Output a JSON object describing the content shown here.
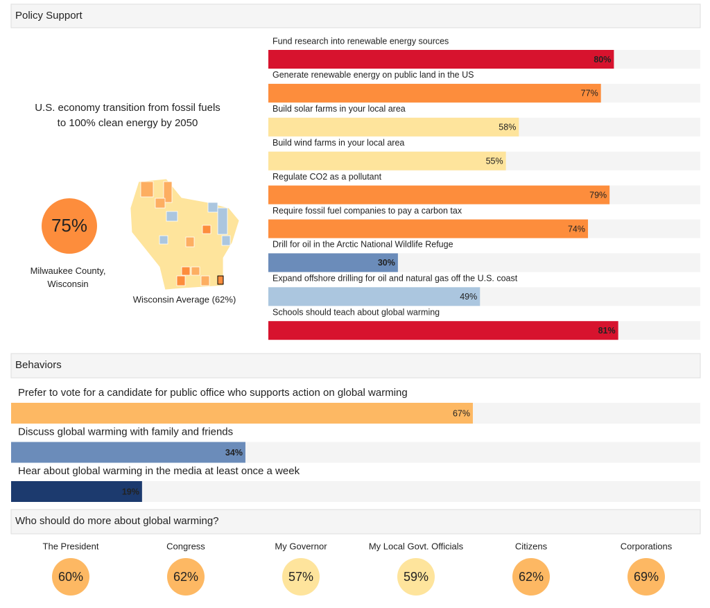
{
  "policy": {
    "title": "Policy Support",
    "headline": "U.S. economy transition from fossil fuels to 100% clean energy by 2050",
    "value": 75,
    "value_label": "75%",
    "color": "#fd8d3c",
    "location": "Milwaukee County, Wisconsin",
    "map_caption": "Wisconsin Average (62%)",
    "xlim": [
      0,
      100
    ],
    "items": [
      {
        "label": "Fund research into renewable energy sources",
        "value": 80,
        "value_label": "80%",
        "color": "#d7132e"
      },
      {
        "label": "Generate renewable energy on public land in the US",
        "value": 77,
        "value_label": "77%",
        "color": "#fd8d3c"
      },
      {
        "label": "Build solar farms in your local area",
        "value": 58,
        "value_label": "58%",
        "color": "#fee49c"
      },
      {
        "label": "Build wind farms in your local area",
        "value": 55,
        "value_label": "55%",
        "color": "#fee49c"
      },
      {
        "label": "Regulate CO2 as a pollutant",
        "value": 79,
        "value_label": "79%",
        "color": "#fd8d3c"
      },
      {
        "label": "Require fossil fuel companies to pay a carbon tax",
        "value": 74,
        "value_label": "74%",
        "color": "#fd8d3c"
      },
      {
        "label": "Drill for oil in the Arctic National Wildlife Refuge",
        "value": 30,
        "value_label": "30%",
        "color": "#6b8cba"
      },
      {
        "label": "Expand offshore drilling for oil and natural gas off the U.S. coast",
        "value": 49,
        "value_label": "49%",
        "color": "#abc6df"
      },
      {
        "label": "Schools should teach about global warming",
        "value": 81,
        "value_label": "81%",
        "color": "#d7132e"
      }
    ]
  },
  "behaviors": {
    "title": "Behaviors",
    "xlim": [
      0,
      100
    ],
    "items": [
      {
        "label": "Prefer to vote for a candidate for public office who supports action on global warming",
        "value": 67,
        "value_label": "67%",
        "color": "#fdb863"
      },
      {
        "label": "Discuss global warming with family and friends",
        "value": 34,
        "value_label": "34%",
        "color": "#6b8cba"
      },
      {
        "label": "Hear about global warming in the media at least once a week",
        "value": 19,
        "value_label": "19%",
        "color": "#1c3a6e"
      }
    ]
  },
  "who": {
    "title": "Who should do more about global warming?",
    "items": [
      {
        "label": "The President",
        "value": 60,
        "value_label": "60%",
        "color": "#fdb863"
      },
      {
        "label": "Congress",
        "value": 62,
        "value_label": "62%",
        "color": "#fdb863"
      },
      {
        "label": "My Governor",
        "value": 57,
        "value_label": "57%",
        "color": "#fee49c"
      },
      {
        "label": "My Local Govt. Officials",
        "value": 59,
        "value_label": "59%",
        "color": "#fee49c"
      },
      {
        "label": "Citizens",
        "value": 62,
        "value_label": "62%",
        "color": "#fdb863"
      },
      {
        "label": "Corporations",
        "value": 69,
        "value_label": "69%",
        "color": "#fdb863"
      }
    ]
  }
}
